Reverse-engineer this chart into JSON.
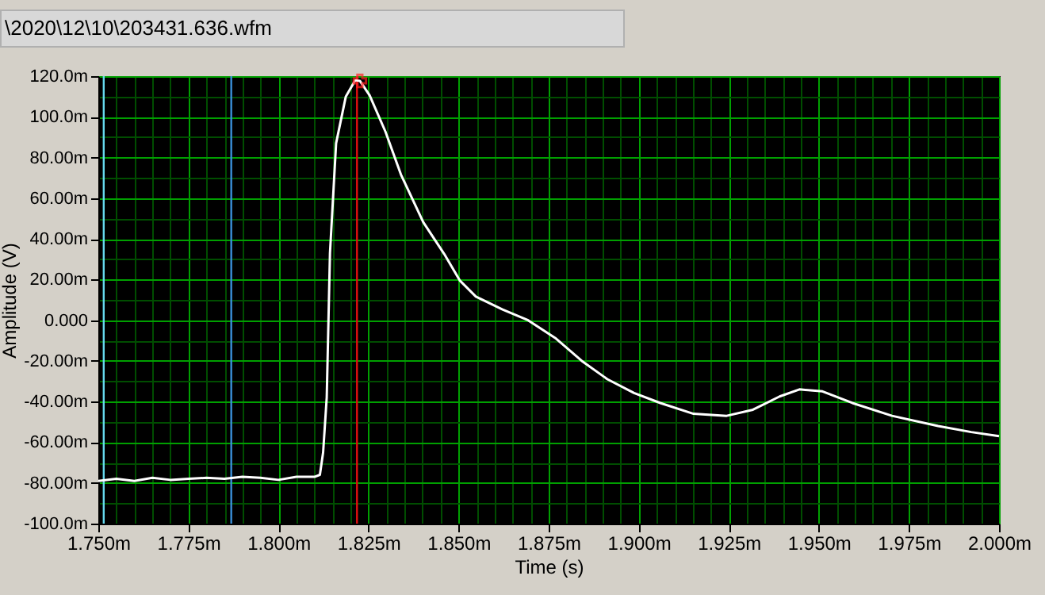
{
  "chart_data": {
    "type": "line",
    "xlabel": "Time (s)",
    "ylabel": "Amplitude (V)",
    "annotations": [
      "\\2020\\12\\10\\203431.636.wfm"
    ],
    "xlim": [
      1.75,
      2.0
    ],
    "ylim": [
      -100,
      120
    ],
    "xticks": [
      {
        "value": 1.75,
        "label": "1.750m"
      },
      {
        "value": 1.755,
        "label": null
      },
      {
        "value": 1.76,
        "label": null
      },
      {
        "value": 1.765,
        "label": null
      },
      {
        "value": 1.77,
        "label": null
      },
      {
        "value": 1.775,
        "label": "1.775m"
      },
      {
        "value": 1.78,
        "label": null
      },
      {
        "value": 1.785,
        "label": null
      },
      {
        "value": 1.79,
        "label": null
      },
      {
        "value": 1.795,
        "label": null
      },
      {
        "value": 1.8,
        "label": "1.800m"
      },
      {
        "value": 1.805,
        "label": null
      },
      {
        "value": 1.81,
        "label": null
      },
      {
        "value": 1.815,
        "label": null
      },
      {
        "value": 1.82,
        "label": null
      },
      {
        "value": 1.825,
        "label": "1.825m"
      },
      {
        "value": 1.83,
        "label": null
      },
      {
        "value": 1.835,
        "label": null
      },
      {
        "value": 1.84,
        "label": null
      },
      {
        "value": 1.845,
        "label": null
      },
      {
        "value": 1.85,
        "label": "1.850m"
      },
      {
        "value": 1.855,
        "label": null
      },
      {
        "value": 1.86,
        "label": null
      },
      {
        "value": 1.865,
        "label": null
      },
      {
        "value": 1.87,
        "label": null
      },
      {
        "value": 1.875,
        "label": "1.875m"
      },
      {
        "value": 1.88,
        "label": null
      },
      {
        "value": 1.885,
        "label": null
      },
      {
        "value": 1.89,
        "label": null
      },
      {
        "value": 1.895,
        "label": null
      },
      {
        "value": 1.9,
        "label": "1.900m"
      },
      {
        "value": 1.905,
        "label": null
      },
      {
        "value": 1.91,
        "label": null
      },
      {
        "value": 1.915,
        "label": null
      },
      {
        "value": 1.92,
        "label": null
      },
      {
        "value": 1.925,
        "label": "1.925m"
      },
      {
        "value": 1.93,
        "label": null
      },
      {
        "value": 1.935,
        "label": null
      },
      {
        "value": 1.94,
        "label": null
      },
      {
        "value": 1.945,
        "label": null
      },
      {
        "value": 1.95,
        "label": "1.950m"
      },
      {
        "value": 1.955,
        "label": null
      },
      {
        "value": 1.96,
        "label": null
      },
      {
        "value": 1.965,
        "label": null
      },
      {
        "value": 1.97,
        "label": null
      },
      {
        "value": 1.975,
        "label": "1.975m"
      },
      {
        "value": 1.98,
        "label": null
      },
      {
        "value": 1.985,
        "label": null
      },
      {
        "value": 1.99,
        "label": null
      },
      {
        "value": 1.995,
        "label": null
      },
      {
        "value": 2.0,
        "label": "2.000m"
      }
    ],
    "yticks": [
      {
        "value": -100,
        "label": "-100.0m"
      },
      {
        "value": -90,
        "label": null
      },
      {
        "value": -80,
        "label": "-80.00m"
      },
      {
        "value": -70,
        "label": null
      },
      {
        "value": -60,
        "label": "-60.00m"
      },
      {
        "value": -50,
        "label": null
      },
      {
        "value": -40,
        "label": "-40.00m"
      },
      {
        "value": -30,
        "label": null
      },
      {
        "value": -20,
        "label": "-20.00m"
      },
      {
        "value": -10,
        "label": null
      },
      {
        "value": 0,
        "label": "0.000"
      },
      {
        "value": 10,
        "label": null
      },
      {
        "value": 20,
        "label": "20.00m"
      },
      {
        "value": 30,
        "label": null
      },
      {
        "value": 40,
        "label": "40.00m"
      },
      {
        "value": 50,
        "label": null
      },
      {
        "value": 60,
        "label": "60.00m"
      },
      {
        "value": 70,
        "label": null
      },
      {
        "value": 80,
        "label": "80.00m"
      },
      {
        "value": 90,
        "label": null
      },
      {
        "value": 100,
        "label": "100.0m"
      },
      {
        "value": 110,
        "label": null
      },
      {
        "value": 120,
        "label": "120.0m"
      }
    ],
    "grid": true,
    "series": [
      {
        "color": "#ffffff",
        "x": [
          1.75,
          1.755,
          1.76,
          1.765,
          1.77,
          1.775,
          1.78,
          1.785,
          1.79,
          1.795,
          1.8,
          1.805,
          1.81,
          1.8115,
          1.8124,
          1.8134,
          1.8143,
          1.816,
          1.8187,
          1.8213,
          1.8226,
          1.8253,
          1.8297,
          1.834,
          1.8402,
          1.846,
          1.8504,
          1.8548,
          1.8622,
          1.8693,
          1.8768,
          1.8842,
          1.8913,
          1.8987,
          1.906,
          1.9152,
          1.9244,
          1.9317,
          1.9391,
          1.9446,
          1.951,
          1.9593,
          1.9703,
          1.9831,
          1.9923,
          2.0
        ],
        "values": [
          -79,
          -78,
          -79,
          -77.5,
          -78.5,
          -78,
          -77.5,
          -78,
          -77,
          -77.5,
          -78.5,
          -77,
          -77,
          -76,
          -65,
          -38,
          33,
          87,
          110,
          118,
          117.7,
          110.6,
          92.7,
          71.6,
          48.2,
          32.6,
          19.4,
          11.6,
          5.3,
          0,
          -8.7,
          -20,
          -29,
          -35.8,
          -40.7,
          -46,
          -47,
          -44,
          -37.5,
          -34,
          -35,
          -40.7,
          -47,
          -52,
          -55,
          -57
        ]
      },
      {
        "type": "scatter",
        "color": "#ff2020",
        "marker": "cross",
        "x": [
          1.8226
        ],
        "values": [
          117.7
        ]
      }
    ],
    "ref_lines": [
      {
        "axis": "x",
        "value": 1.7515,
        "color": "#66d9ee"
      },
      {
        "axis": "x",
        "value": 1.7869,
        "color": "#3a8fd8"
      },
      {
        "axis": "x",
        "value": 1.8218,
        "color": "#e01010"
      }
    ]
  }
}
